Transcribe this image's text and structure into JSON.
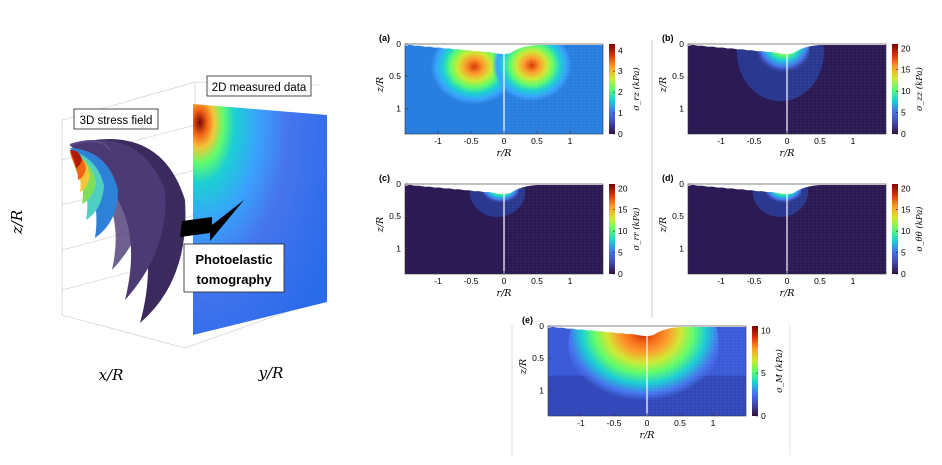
{
  "left_panel": {
    "label_3d": "3D stress field",
    "label_2d": "2D measured data",
    "method_line1": "Photoelastic",
    "method_line2": "tomography",
    "axis_x": "x/R",
    "axis_y": "y/R",
    "axis_z": "z/R"
  },
  "panels": [
    {
      "tag": "(a)",
      "cbar_label": "σ_rz (kPa)",
      "cbar_ticks": [
        "0",
        "1",
        "2",
        "3",
        "4"
      ],
      "cbar_max": 4.3
    },
    {
      "tag": "(b)",
      "cbar_label": "σ_zz (kPa)",
      "cbar_ticks": [
        "0",
        "5",
        "10",
        "15",
        "20"
      ],
      "cbar_max": 21
    },
    {
      "tag": "(c)",
      "cbar_label": "σ_rr (kPa)",
      "cbar_ticks": [
        "0",
        "5",
        "10",
        "15",
        "20"
      ],
      "cbar_max": 21
    },
    {
      "tag": "(d)",
      "cbar_label": "σ_θθ (kPa)",
      "cbar_ticks": [
        "0",
        "5",
        "10",
        "15",
        "20"
      ],
      "cbar_max": 21
    },
    {
      "tag": "(e)",
      "cbar_label": "σ_M (kPa)",
      "cbar_ticks": [
        "0",
        "5",
        "10"
      ],
      "cbar_max": 10.5
    }
  ],
  "axes": {
    "x_ticks": [
      "-1",
      "-0.5",
      "0",
      "0.5",
      "1"
    ],
    "y_ticks": [
      "0",
      "0.5",
      "1"
    ],
    "xlabel": "r/R",
    "ylabel": "z/R"
  },
  "colors": {
    "colormap": [
      "#30123b",
      "#4145ab",
      "#4675ed",
      "#39a2fc",
      "#1bcfd4",
      "#24eca6",
      "#61fc6c",
      "#a4fc3b",
      "#d1e834",
      "#f3c63a",
      "#fe9b2d",
      "#f36315",
      "#d93806",
      "#b11901",
      "#7a0403"
    ],
    "surface_dark": "#3b2a5e",
    "arrow": "#000000"
  }
}
